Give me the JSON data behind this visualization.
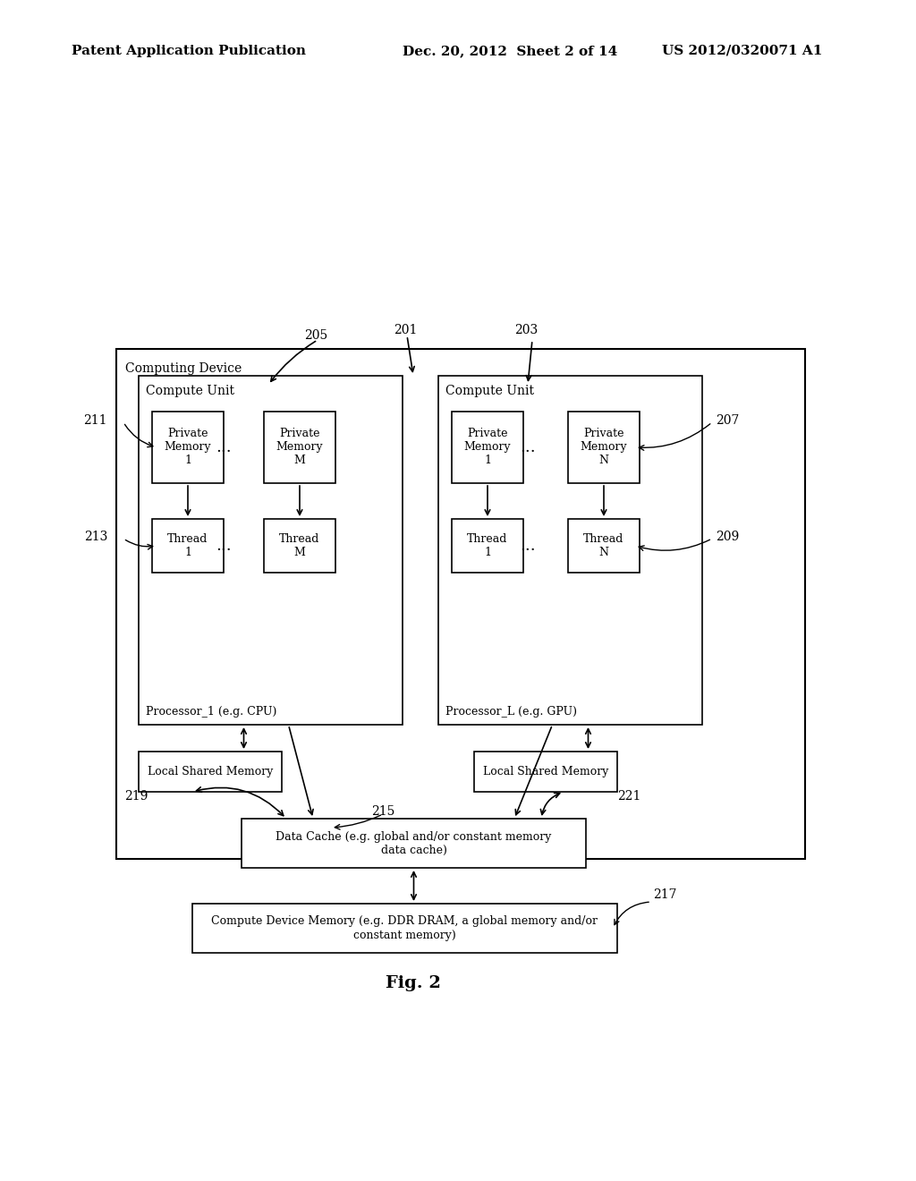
{
  "bg_color": "#ffffff",
  "header_left": "Patent Application Publication",
  "header_mid": "Dec. 20, 2012  Sheet 2 of 14",
  "header_right": "US 2012/0320071 A1",
  "fig_label": "Fig. 2",
  "labels": {
    "201": "201",
    "203": "203",
    "205": "205",
    "207": "207",
    "209": "209",
    "211": "211",
    "213": "213",
    "215": "215",
    "217": "217",
    "219": "219",
    "221": "221"
  },
  "box_texts": {
    "computing_device": "Computing Device",
    "compute_unit_left": "Compute Unit",
    "compute_unit_right": "Compute Unit",
    "priv_mem_1_left": "Private\nMemory\n1",
    "priv_mem_m_left": "Private\nMemory\nM",
    "priv_mem_1_right": "Private\nMemory\n1",
    "priv_mem_n_right": "Private\nMemory\nN",
    "thread_1_left": "Thread\n1",
    "thread_m_left": "Thread\nM",
    "thread_1_right": "Thread\n1",
    "thread_n_right": "Thread\nN",
    "processor_left": "Processor_1 (e.g. CPU)",
    "processor_right": "Processor_L (e.g. GPU)",
    "local_shared_left": "Local Shared Memory",
    "local_shared_right": "Local Shared Memory",
    "data_cache": "Data Cache (e.g. global and/or constant memory\ndata cache)",
    "compute_device_memory": "Compute Device Memory (e.g. DDR DRAM, a global memory and/or\nconstant memory)"
  }
}
